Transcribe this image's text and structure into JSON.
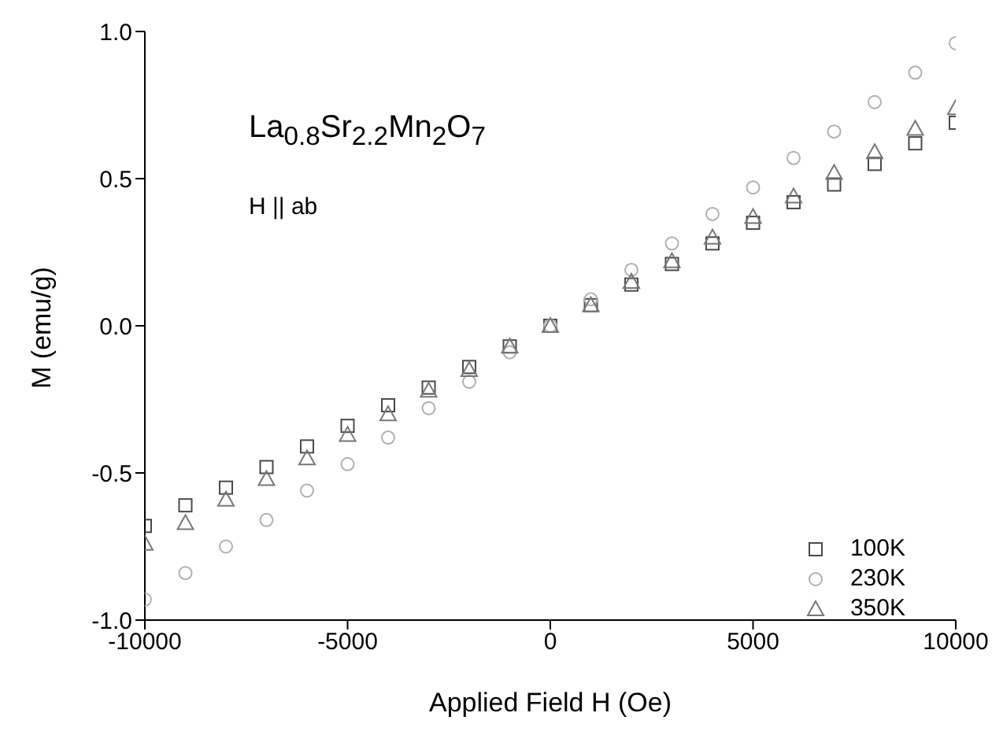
{
  "chart_data": {
    "type": "scatter",
    "xlabel": "Applied Field H (Oe)",
    "ylabel": "M (emu/g)",
    "x": [
      -10000,
      -9000,
      -8000,
      -7000,
      -6000,
      -5000,
      -4000,
      -3000,
      -2000,
      -1000,
      0,
      1000,
      2000,
      3000,
      4000,
      5000,
      6000,
      7000,
      8000,
      9000,
      10000
    ],
    "xlim": [
      -10000,
      10000
    ],
    "xticks": [
      -10000,
      -5000,
      0,
      5000,
      10000
    ],
    "ylim": [
      -1,
      1
    ],
    "yticks": [
      {
        "value": -1,
        "label": "-1.0"
      },
      {
        "value": -0.5,
        "label": "-0.5"
      },
      {
        "value": 0,
        "label": "0.0"
      },
      {
        "value": 0.5,
        "label": "0.5"
      },
      {
        "value": 1,
        "label": "1.0"
      }
    ],
    "grid": false,
    "legend": "bottom right",
    "annotations": [
      "La$_{0.8}$Sr$_{2.2}$Mn$_{2}$O$_{7}$",
      "H || ab"
    ],
    "series": [
      {
        "name": "100K",
        "color": "#4a4a4a",
        "marker": "square",
        "values": [
          -0.68,
          -0.61,
          -0.55,
          -0.48,
          -0.41,
          -0.34,
          -0.27,
          -0.21,
          -0.14,
          -0.07,
          0,
          0.07,
          0.14,
          0.21,
          0.28,
          0.35,
          0.42,
          0.48,
          0.55,
          0.62,
          0.69
        ]
      },
      {
        "name": "230K",
        "color": "#b0b0b0",
        "marker": "circle",
        "values": [
          -0.93,
          -0.84,
          -0.75,
          -0.66,
          -0.56,
          -0.47,
          -0.38,
          -0.28,
          -0.19,
          -0.09,
          0,
          0.09,
          0.19,
          0.28,
          0.38,
          0.47,
          0.57,
          0.66,
          0.76,
          0.86,
          0.96
        ]
      },
      {
        "name": "350K",
        "color": "#777777",
        "marker": "triangle",
        "values": [
          -0.74,
          -0.67,
          -0.59,
          -0.52,
          -0.45,
          -0.37,
          -0.3,
          -0.22,
          -0.15,
          -0.07,
          0,
          0.07,
          0.15,
          0.22,
          0.3,
          0.37,
          0.44,
          0.52,
          0.59,
          0.67,
          0.74
        ]
      }
    ]
  }
}
